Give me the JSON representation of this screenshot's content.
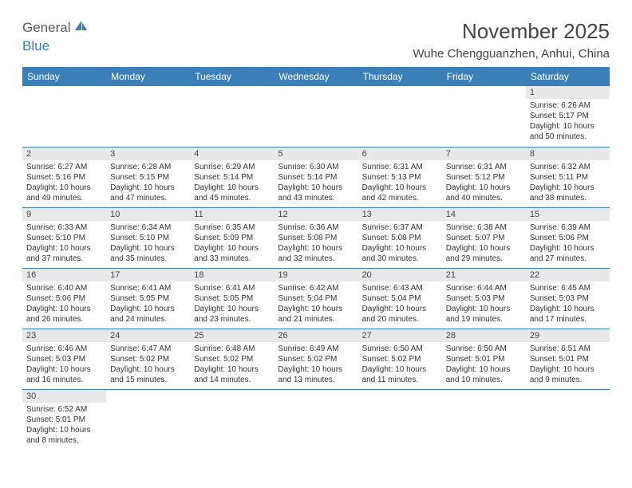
{
  "logo": {
    "text_general": "General",
    "text_blue": "Blue",
    "icon_color": "#3a7fb8"
  },
  "title": {
    "month": "November 2025",
    "month_fontsize": 26,
    "location": "Wuhe Chengguanzhen, Anhui, China",
    "location_fontsize": 15
  },
  "colors": {
    "header_bg": "#3a7fb8",
    "header_text": "#ffffff",
    "daynum_bg": "#e8e8e8",
    "cell_border": "#3a7fb8",
    "body_text": "#333333",
    "background": "#ffffff"
  },
  "calendar": {
    "columns": [
      "Sunday",
      "Monday",
      "Tuesday",
      "Wednesday",
      "Thursday",
      "Friday",
      "Saturday"
    ],
    "weeks": [
      [
        null,
        null,
        null,
        null,
        null,
        null,
        {
          "n": "1",
          "sunrise": "Sunrise: 6:26 AM",
          "sunset": "Sunset: 5:17 PM",
          "daylight": "Daylight: 10 hours and 50 minutes."
        }
      ],
      [
        {
          "n": "2",
          "sunrise": "Sunrise: 6:27 AM",
          "sunset": "Sunset: 5:16 PM",
          "daylight": "Daylight: 10 hours and 49 minutes."
        },
        {
          "n": "3",
          "sunrise": "Sunrise: 6:28 AM",
          "sunset": "Sunset: 5:15 PM",
          "daylight": "Daylight: 10 hours and 47 minutes."
        },
        {
          "n": "4",
          "sunrise": "Sunrise: 6:29 AM",
          "sunset": "Sunset: 5:14 PM",
          "daylight": "Daylight: 10 hours and 45 minutes."
        },
        {
          "n": "5",
          "sunrise": "Sunrise: 6:30 AM",
          "sunset": "Sunset: 5:14 PM",
          "daylight": "Daylight: 10 hours and 43 minutes."
        },
        {
          "n": "6",
          "sunrise": "Sunrise: 6:31 AM",
          "sunset": "Sunset: 5:13 PM",
          "daylight": "Daylight: 10 hours and 42 minutes."
        },
        {
          "n": "7",
          "sunrise": "Sunrise: 6:31 AM",
          "sunset": "Sunset: 5:12 PM",
          "daylight": "Daylight: 10 hours and 40 minutes."
        },
        {
          "n": "8",
          "sunrise": "Sunrise: 6:32 AM",
          "sunset": "Sunset: 5:11 PM",
          "daylight": "Daylight: 10 hours and 38 minutes."
        }
      ],
      [
        {
          "n": "9",
          "sunrise": "Sunrise: 6:33 AM",
          "sunset": "Sunset: 5:10 PM",
          "daylight": "Daylight: 10 hours and 37 minutes."
        },
        {
          "n": "10",
          "sunrise": "Sunrise: 6:34 AM",
          "sunset": "Sunset: 5:10 PM",
          "daylight": "Daylight: 10 hours and 35 minutes."
        },
        {
          "n": "11",
          "sunrise": "Sunrise: 6:35 AM",
          "sunset": "Sunset: 5:09 PM",
          "daylight": "Daylight: 10 hours and 33 minutes."
        },
        {
          "n": "12",
          "sunrise": "Sunrise: 6:36 AM",
          "sunset": "Sunset: 5:08 PM",
          "daylight": "Daylight: 10 hours and 32 minutes."
        },
        {
          "n": "13",
          "sunrise": "Sunrise: 6:37 AM",
          "sunset": "Sunset: 5:08 PM",
          "daylight": "Daylight: 10 hours and 30 minutes."
        },
        {
          "n": "14",
          "sunrise": "Sunrise: 6:38 AM",
          "sunset": "Sunset: 5:07 PM",
          "daylight": "Daylight: 10 hours and 29 minutes."
        },
        {
          "n": "15",
          "sunrise": "Sunrise: 6:39 AM",
          "sunset": "Sunset: 5:06 PM",
          "daylight": "Daylight: 10 hours and 27 minutes."
        }
      ],
      [
        {
          "n": "16",
          "sunrise": "Sunrise: 6:40 AM",
          "sunset": "Sunset: 5:06 PM",
          "daylight": "Daylight: 10 hours and 26 minutes."
        },
        {
          "n": "17",
          "sunrise": "Sunrise: 6:41 AM",
          "sunset": "Sunset: 5:05 PM",
          "daylight": "Daylight: 10 hours and 24 minutes."
        },
        {
          "n": "18",
          "sunrise": "Sunrise: 6:41 AM",
          "sunset": "Sunset: 5:05 PM",
          "daylight": "Daylight: 10 hours and 23 minutes."
        },
        {
          "n": "19",
          "sunrise": "Sunrise: 6:42 AM",
          "sunset": "Sunset: 5:04 PM",
          "daylight": "Daylight: 10 hours and 21 minutes."
        },
        {
          "n": "20",
          "sunrise": "Sunrise: 6:43 AM",
          "sunset": "Sunset: 5:04 PM",
          "daylight": "Daylight: 10 hours and 20 minutes."
        },
        {
          "n": "21",
          "sunrise": "Sunrise: 6:44 AM",
          "sunset": "Sunset: 5:03 PM",
          "daylight": "Daylight: 10 hours and 19 minutes."
        },
        {
          "n": "22",
          "sunrise": "Sunrise: 6:45 AM",
          "sunset": "Sunset: 5:03 PM",
          "daylight": "Daylight: 10 hours and 17 minutes."
        }
      ],
      [
        {
          "n": "23",
          "sunrise": "Sunrise: 6:46 AM",
          "sunset": "Sunset: 5:03 PM",
          "daylight": "Daylight: 10 hours and 16 minutes."
        },
        {
          "n": "24",
          "sunrise": "Sunrise: 6:47 AM",
          "sunset": "Sunset: 5:02 PM",
          "daylight": "Daylight: 10 hours and 15 minutes."
        },
        {
          "n": "25",
          "sunrise": "Sunrise: 6:48 AM",
          "sunset": "Sunset: 5:02 PM",
          "daylight": "Daylight: 10 hours and 14 minutes."
        },
        {
          "n": "26",
          "sunrise": "Sunrise: 6:49 AM",
          "sunset": "Sunset: 5:02 PM",
          "daylight": "Daylight: 10 hours and 13 minutes."
        },
        {
          "n": "27",
          "sunrise": "Sunrise: 6:50 AM",
          "sunset": "Sunset: 5:02 PM",
          "daylight": "Daylight: 10 hours and 11 minutes."
        },
        {
          "n": "28",
          "sunrise": "Sunrise: 6:50 AM",
          "sunset": "Sunset: 5:01 PM",
          "daylight": "Daylight: 10 hours and 10 minutes."
        },
        {
          "n": "29",
          "sunrise": "Sunrise: 6:51 AM",
          "sunset": "Sunset: 5:01 PM",
          "daylight": "Daylight: 10 hours and 9 minutes."
        }
      ],
      [
        {
          "n": "30",
          "sunrise": "Sunrise: 6:52 AM",
          "sunset": "Sunset: 5:01 PM",
          "daylight": "Daylight: 10 hours and 8 minutes."
        },
        null,
        null,
        null,
        null,
        null,
        null
      ]
    ]
  }
}
